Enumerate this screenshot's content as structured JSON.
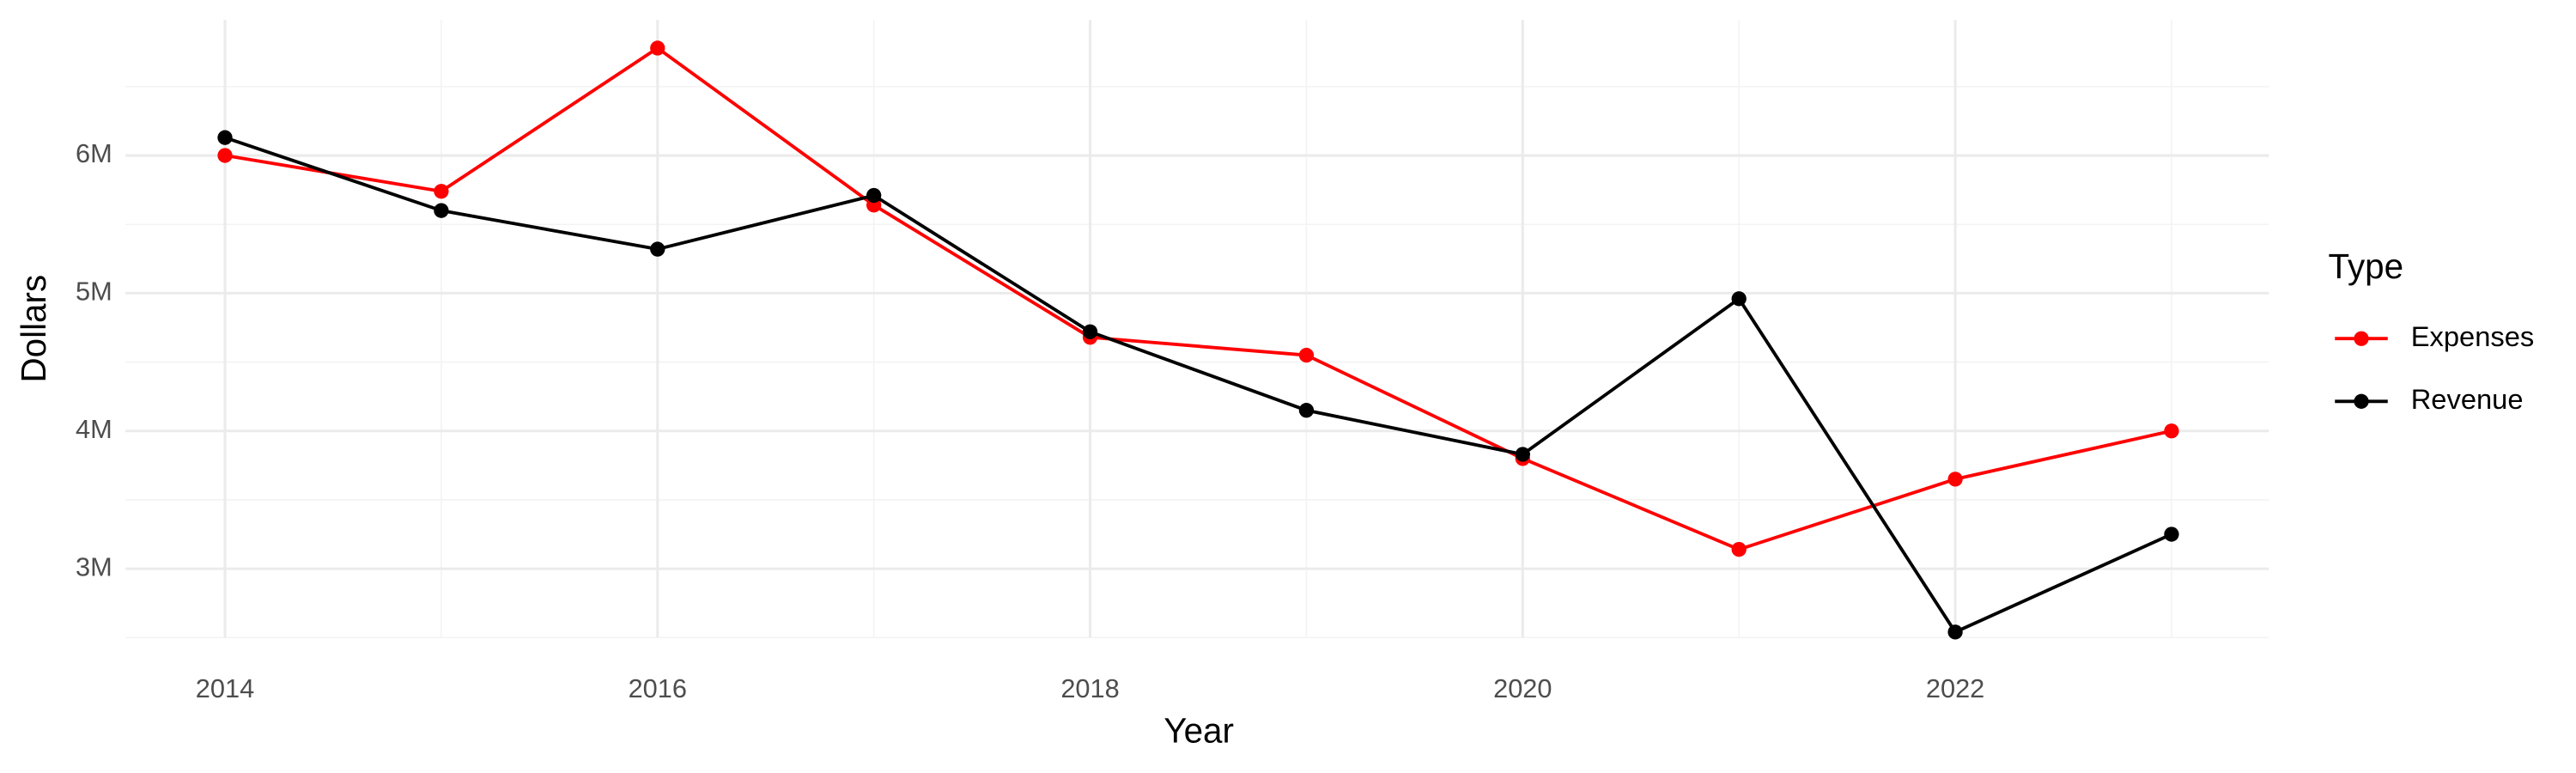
{
  "chart_data": {
    "type": "line",
    "x_label": "Year",
    "y_label": "Dollars",
    "legend_title": "Type",
    "x": [
      2014,
      2015,
      2016,
      2017,
      2018,
      2019,
      2020,
      2021,
      2022,
      2023
    ],
    "series": [
      {
        "name": "Expenses",
        "color": "#ff0000",
        "values": [
          6000000,
          5740000,
          6780000,
          5640000,
          4680000,
          4550000,
          3800000,
          3140000,
          3650000,
          4000000
        ]
      },
      {
        "name": "Revenue",
        "color": "#000000",
        "values": [
          6130000,
          5600000,
          5320000,
          5710000,
          4720000,
          4150000,
          3830000,
          4960000,
          2540000,
          3250000
        ]
      }
    ],
    "xlim": [
      2013.54,
      2023.45
    ],
    "xticks": [
      2014,
      2016,
      2018,
      2020,
      2022
    ],
    "ylim": [
      2500000,
      6985000
    ],
    "yticks": [
      {
        "value": 3000000,
        "label": "3M"
      },
      {
        "value": 4000000,
        "label": "4M"
      },
      {
        "value": 5000000,
        "label": "5M"
      },
      {
        "value": 6000000,
        "label": "6M"
      }
    ],
    "grid": true,
    "legend": "right"
  }
}
